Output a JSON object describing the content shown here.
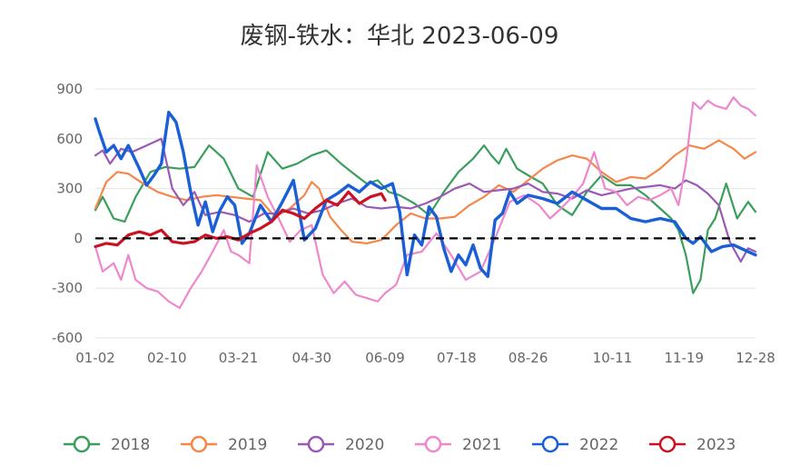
{
  "chart_data": {
    "type": "line",
    "title": "废钢-铁水：华北 2023-06-09",
    "xlabel": "",
    "ylabel": "",
    "ylim": [
      -600,
      900
    ],
    "yticks": [
      900,
      600,
      300,
      0,
      -300,
      -600
    ],
    "x_tick_labels": [
      "01-02",
      "02-10",
      "03-21",
      "04-30",
      "06-09",
      "07-18",
      "08-26",
      "10-11",
      "11-19",
      "12-28"
    ],
    "x_day_range": [
      2,
      362
    ],
    "x_tick_days": [
      2,
      41,
      80,
      120,
      160,
      199,
      238,
      284,
      323,
      362
    ],
    "reference_line": {
      "y": 0,
      "style": "dashed",
      "color": "#000000"
    },
    "grid": "horizontal",
    "legend_position": "bottom",
    "series": [
      {
        "name": "2018",
        "color": "#3a9e5c",
        "x": [
          2,
          6,
          12,
          18,
          24,
          32,
          40,
          48,
          56,
          64,
          72,
          80,
          88,
          96,
          104,
          112,
          120,
          128,
          136,
          144,
          150,
          156,
          162,
          168,
          176,
          184,
          192,
          200,
          208,
          214,
          218,
          222,
          226,
          232,
          238,
          246,
          254,
          262,
          270,
          278,
          286,
          294,
          302,
          310,
          316,
          320,
          324,
          328,
          332,
          336,
          340,
          346,
          352,
          358,
          362
        ],
        "values": [
          170,
          250,
          120,
          100,
          250,
          400,
          430,
          420,
          430,
          560,
          480,
          300,
          250,
          520,
          420,
          450,
          500,
          530,
          450,
          380,
          330,
          350,
          280,
          260,
          210,
          140,
          280,
          400,
          480,
          560,
          500,
          450,
          540,
          420,
          380,
          330,
          200,
          140,
          280,
          380,
          320,
          320,
          260,
          180,
          120,
          50,
          -100,
          -330,
          -250,
          50,
          120,
          330,
          120,
          220,
          160
        ]
      },
      {
        "name": "2019",
        "color": "#f5874b",
        "x": [
          2,
          8,
          14,
          20,
          28,
          36,
          44,
          52,
          60,
          68,
          76,
          84,
          92,
          100,
          108,
          116,
          120,
          124,
          130,
          136,
          142,
          150,
          158,
          166,
          174,
          182,
          190,
          198,
          206,
          214,
          222,
          230,
          238,
          246,
          254,
          262,
          270,
          278,
          286,
          294,
          302,
          310,
          318,
          326,
          334,
          342,
          350,
          356,
          362
        ],
        "values": [
          180,
          340,
          400,
          390,
          330,
          280,
          250,
          230,
          250,
          260,
          250,
          240,
          230,
          130,
          180,
          260,
          340,
          300,
          130,
          50,
          -20,
          -30,
          -10,
          80,
          150,
          120,
          120,
          130,
          200,
          250,
          320,
          280,
          350,
          420,
          470,
          500,
          480,
          400,
          340,
          370,
          360,
          420,
          500,
          560,
          540,
          590,
          540,
          480,
          520
        ]
      },
      {
        "name": "2020",
        "color": "#9b59b6",
        "x": [
          2,
          6,
          10,
          16,
          22,
          30,
          38,
          44,
          50,
          56,
          62,
          70,
          78,
          86,
          94,
          102,
          110,
          118,
          126,
          134,
          142,
          150,
          158,
          166,
          174,
          182,
          190,
          198,
          206,
          214,
          222,
          230,
          238,
          246,
          254,
          262,
          270,
          278,
          286,
          294,
          302,
          310,
          318,
          324,
          330,
          336,
          342,
          348,
          354,
          358,
          362
        ],
        "values": [
          500,
          530,
          450,
          540,
          520,
          560,
          600,
          300,
          200,
          280,
          140,
          160,
          140,
          100,
          150,
          150,
          180,
          150,
          170,
          210,
          240,
          190,
          180,
          190,
          180,
          210,
          250,
          300,
          330,
          280,
          290,
          300,
          330,
          280,
          270,
          240,
          290,
          260,
          280,
          300,
          310,
          320,
          300,
          350,
          320,
          270,
          200,
          -20,
          -140,
          -60,
          -80
        ]
      },
      {
        "name": "2021",
        "color": "#ee88cc",
        "x": [
          2,
          6,
          12,
          16,
          20,
          24,
          30,
          36,
          42,
          48,
          54,
          60,
          66,
          72,
          76,
          80,
          86,
          90,
          96,
          102,
          108,
          114,
          120,
          126,
          132,
          138,
          144,
          150,
          156,
          160,
          166,
          172,
          180,
          188,
          196,
          204,
          212,
          220,
          228,
          236,
          244,
          250,
          256,
          262,
          268,
          274,
          280,
          286,
          292,
          298,
          304,
          310,
          316,
          320,
          324,
          328,
          332,
          336,
          340,
          346,
          350,
          354,
          358,
          362
        ],
        "values": [
          -50,
          -200,
          -150,
          -250,
          -100,
          -250,
          -300,
          -320,
          -380,
          -420,
          -300,
          -200,
          -80,
          50,
          -80,
          -100,
          -150,
          440,
          250,
          120,
          -20,
          50,
          80,
          -220,
          -330,
          -260,
          -340,
          -360,
          -380,
          -330,
          -280,
          -100,
          -80,
          30,
          -100,
          -250,
          -200,
          0,
          220,
          260,
          200,
          120,
          180,
          250,
          330,
          520,
          300,
          280,
          200,
          250,
          230,
          260,
          300,
          200,
          450,
          820,
          780,
          830,
          800,
          780,
          850,
          800,
          780,
          740
        ]
      },
      {
        "name": "2022",
        "color": "#1a5fd6",
        "x": [
          2,
          4,
          8,
          12,
          16,
          20,
          26,
          30,
          34,
          38,
          42,
          46,
          50,
          54,
          58,
          62,
          66,
          70,
          74,
          78,
          82,
          86,
          92,
          98,
          104,
          110,
          116,
          122,
          128,
          134,
          140,
          146,
          152,
          158,
          164,
          168,
          172,
          176,
          180,
          184,
          188,
          192,
          196,
          200,
          204,
          208,
          212,
          216,
          220,
          224,
          228,
          232,
          238,
          246,
          254,
          262,
          270,
          278,
          286,
          294,
          302,
          310,
          318,
          324,
          328,
          332,
          338,
          344,
          350,
          356,
          362
        ],
        "values": [
          720,
          650,
          520,
          560,
          480,
          560,
          420,
          320,
          380,
          450,
          760,
          700,
          520,
          280,
          80,
          220,
          40,
          170,
          250,
          200,
          -30,
          30,
          200,
          100,
          220,
          350,
          -10,
          60,
          230,
          270,
          320,
          280,
          340,
          300,
          330,
          160,
          -220,
          20,
          -40,
          190,
          130,
          -60,
          -200,
          -100,
          -160,
          -40,
          -180,
          -230,
          110,
          150,
          280,
          210,
          260,
          240,
          210,
          280,
          230,
          180,
          180,
          120,
          100,
          120,
          100,
          0,
          -30,
          10,
          -80,
          -50,
          -40,
          -70,
          -100
        ]
      },
      {
        "name": "2023",
        "color": "#cc1122",
        "x": [
          2,
          8,
          14,
          20,
          26,
          32,
          38,
          44,
          50,
          56,
          62,
          68,
          74,
          80,
          86,
          92,
          98,
          104,
          110,
          116,
          122,
          128,
          134,
          140,
          146,
          152,
          158,
          160
        ],
        "values": [
          -50,
          -30,
          -40,
          20,
          40,
          20,
          50,
          -20,
          -30,
          -20,
          20,
          0,
          10,
          -10,
          30,
          60,
          100,
          170,
          150,
          120,
          180,
          230,
          200,
          280,
          210,
          250,
          270,
          230
        ]
      }
    ]
  }
}
